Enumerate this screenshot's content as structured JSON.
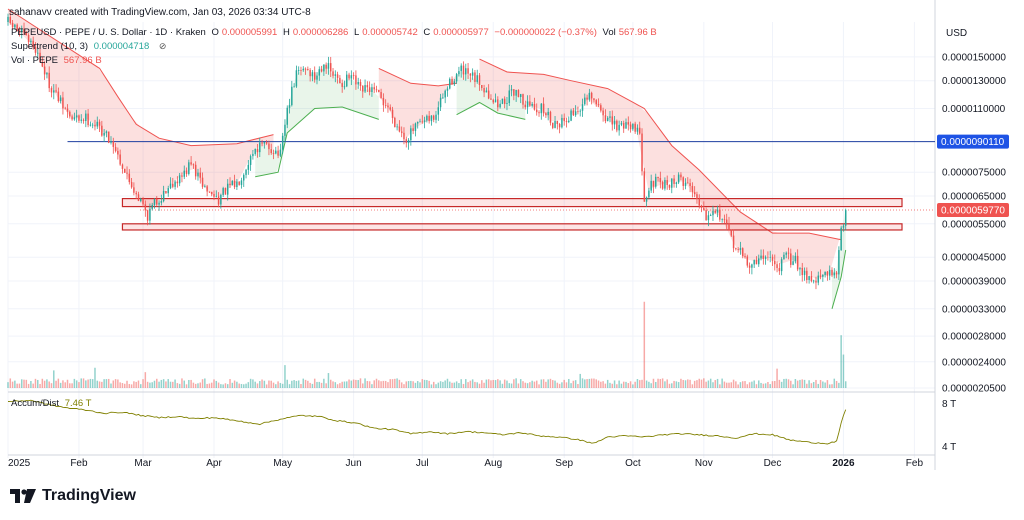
{
  "header": {
    "attribution": "sahanavv created with TradingView.com, Jan 03, 2026 03:34 UTC-8"
  },
  "legend": {
    "title": "PEPEUSD · PEPE / U. S. Dollar · 1D · Kraken",
    "o_key": "O",
    "o_val": "0.000005991",
    "h_key": "H",
    "h_val": "0.000006286",
    "l_key": "L",
    "l_val": "0.000005742",
    "c_key": "C",
    "c_val": "0.000005977",
    "change": "−0.000000022 (−0.37%)",
    "vol_key": "Vol",
    "vol_val": "567.96 B",
    "supertrend_label": "Supertrend (10, 3)",
    "supertrend_val": "0.000004718",
    "vol_label": "Vol · PEPE",
    "vol_label_val": "567.96 B",
    "accum_label": "Accum/Dist",
    "accum_val": "7.46 T"
  },
  "brand": {
    "name": "TradingView"
  },
  "colors": {
    "up": "#26a69a",
    "down": "#ef5350",
    "level_line": "#1e3fa0",
    "supertrend_up": "#4caf50",
    "supertrend_down": "#ef5350",
    "zone_border": "#c62828",
    "ad_line": "#808000"
  },
  "chart_data": {
    "type": "candlestick",
    "currency": "USD",
    "y_scale": "log",
    "ylim": [
      2.05e-06,
      1.85e-05
    ],
    "y_ticks": [
      "0.0000150000",
      "0.0000130000",
      "0.0000110000",
      "0.0000075000",
      "0.0000065000",
      "0.0000055000",
      "0.0000045000",
      "0.0000039000",
      "0.0000033000",
      "0.0000028000",
      "0.0000024000",
      "0.0000020500"
    ],
    "y_tick_values": [
      1.5e-05,
      1.3e-05,
      1.1e-05,
      7.5e-06,
      6.5e-06,
      5.5e-06,
      4.5e-06,
      3.9e-06,
      3.3e-06,
      2.8e-06,
      2.4e-06,
      2.05e-06
    ],
    "x_ticks": [
      "2025",
      "Feb",
      "Mar",
      "Apr",
      "May",
      "Jun",
      "Jul",
      "Aug",
      "Sep",
      "Oct",
      "Nov",
      "Dec",
      "2026",
      "Feb"
    ],
    "x_tick_days": [
      0,
      31,
      59,
      90,
      120,
      151,
      181,
      212,
      243,
      273,
      304,
      334,
      365,
      396
    ],
    "x_range_days": [
      0,
      405
    ],
    "price_labels": [
      {
        "label": "0.0000090110",
        "value": 9.011e-06,
        "kind": "level"
      },
      {
        "label": "0.0000059770",
        "value": 5.977e-06,
        "kind": "last"
      }
    ],
    "horizontal_level": {
      "value": 9.011e-06,
      "start_day": 26
    },
    "zones": [
      {
        "low": 6.1e-06,
        "high": 6.4e-06,
        "start_day": 50
      },
      {
        "low": 5.3e-06,
        "high": 5.5e-06,
        "start_day": 50
      }
    ],
    "close_path": [
      [
        0,
        1.85e-05
      ],
      [
        6,
        1.72e-05
      ],
      [
        12,
        1.58e-05
      ],
      [
        18,
        1.28e-05
      ],
      [
        24,
        1.11e-05
      ],
      [
        28,
        1.03e-05
      ],
      [
        34,
        1.04e-05
      ],
      [
        40,
        9.8e-06
      ],
      [
        46,
        8.9e-06
      ],
      [
        52,
        7.3e-06
      ],
      [
        58,
        6.3e-06
      ],
      [
        61,
        5.8e-06
      ],
      [
        64,
        6.2e-06
      ],
      [
        68,
        6.6e-06
      ],
      [
        72,
        7.1e-06
      ],
      [
        76,
        7.3e-06
      ],
      [
        80,
        7.9e-06
      ],
      [
        84,
        7.1e-06
      ],
      [
        88,
        6.6e-06
      ],
      [
        92,
        6.4e-06
      ],
      [
        96,
        6.8e-06
      ],
      [
        100,
        7e-06
      ],
      [
        104,
        7.8e-06
      ],
      [
        108,
        8.7e-06
      ],
      [
        112,
        8.8e-06
      ],
      [
        116,
        8.6e-06
      ],
      [
        119,
        8.3e-06
      ],
      [
        122,
        1.09e-05
      ],
      [
        126,
        1.35e-05
      ],
      [
        130,
        1.41e-05
      ],
      [
        134,
        1.32e-05
      ],
      [
        138,
        1.46e-05
      ],
      [
        142,
        1.34e-05
      ],
      [
        146,
        1.28e-05
      ],
      [
        150,
        1.33e-05
      ],
      [
        154,
        1.22e-05
      ],
      [
        158,
        1.24e-05
      ],
      [
        162,
        1.18e-05
      ],
      [
        166,
        1.11e-05
      ],
      [
        170,
        9.9e-06
      ],
      [
        174,
        9.2e-06
      ],
      [
        178,
        9.8e-06
      ],
      [
        182,
        1.01e-05
      ],
      [
        186,
        1.04e-05
      ],
      [
        190,
        1.18e-05
      ],
      [
        194,
        1.31e-05
      ],
      [
        198,
        1.38e-05
      ],
      [
        202,
        1.33e-05
      ],
      [
        206,
        1.29e-05
      ],
      [
        210,
        1.2e-05
      ],
      [
        214,
        1.12e-05
      ],
      [
        218,
        1.17e-05
      ],
      [
        222,
        1.23e-05
      ],
      [
        226,
        1.13e-05
      ],
      [
        230,
        1.11e-05
      ],
      [
        234,
        1.09e-05
      ],
      [
        238,
        1.01e-05
      ],
      [
        242,
        1.02e-05
      ],
      [
        246,
        1.06e-05
      ],
      [
        250,
        1.11e-05
      ],
      [
        254,
        1.17e-05
      ],
      [
        258,
        1.11e-05
      ],
      [
        262,
        1.03e-05
      ],
      [
        266,
        9.8e-06
      ],
      [
        270,
        1.01e-05
      ],
      [
        274,
        9.9e-06
      ],
      [
        276,
        9.2e-06
      ],
      [
        278,
        6.5e-06
      ],
      [
        282,
        7.1e-06
      ],
      [
        286,
        6.9e-06
      ],
      [
        290,
        7.1e-06
      ],
      [
        294,
        7.2e-06
      ],
      [
        298,
        6.9e-06
      ],
      [
        302,
        6.3e-06
      ],
      [
        305,
        5.8e-06
      ],
      [
        308,
        6.1e-06
      ],
      [
        312,
        5.7e-06
      ],
      [
        316,
        5e-06
      ],
      [
        320,
        4.6e-06
      ],
      [
        324,
        4.3e-06
      ],
      [
        328,
        4.4e-06
      ],
      [
        332,
        4.6e-06
      ],
      [
        336,
        4.2e-06
      ],
      [
        340,
        4.5e-06
      ],
      [
        344,
        4.4e-06
      ],
      [
        348,
        4.1e-06
      ],
      [
        352,
        3.9e-06
      ],
      [
        356,
        4e-06
      ],
      [
        360,
        4.1e-06
      ],
      [
        362,
        4.2e-06
      ],
      [
        364,
        5.2e-06
      ],
      [
        366,
        6e-06
      ]
    ],
    "supertrend": [
      {
        "trend": "down",
        "points": [
          [
            0,
            2e-05
          ],
          [
            40,
            1.4e-05
          ],
          [
            48,
            1.18e-05
          ],
          [
            56,
            1e-05
          ],
          [
            66,
            9.2e-06
          ],
          [
            80,
            8.8e-06
          ],
          [
            100,
            8.9e-06
          ],
          [
            116,
            9.4e-06
          ]
        ]
      },
      {
        "trend": "up",
        "points": [
          [
            108,
            7.3e-06
          ],
          [
            118,
            7.5e-06
          ],
          [
            122,
            9.5e-06
          ],
          [
            134,
            1.1e-05
          ],
          [
            146,
            1.11e-05
          ],
          [
            162,
            1.03e-05
          ]
        ]
      },
      {
        "trend": "down",
        "points": [
          [
            162,
            1.4e-05
          ],
          [
            176,
            1.28e-05
          ],
          [
            188,
            1.26e-05
          ],
          [
            196,
            1.28e-05
          ]
        ]
      },
      {
        "trend": "up",
        "points": [
          [
            196,
            1.06e-05
          ],
          [
            206,
            1.14e-05
          ],
          [
            214,
            1.07e-05
          ],
          [
            226,
            1.03e-05
          ]
        ]
      },
      {
        "trend": "down",
        "points": [
          [
            206,
            1.48e-05
          ],
          [
            218,
            1.37e-05
          ],
          [
            234,
            1.35e-05
          ],
          [
            246,
            1.3e-05
          ],
          [
            262,
            1.24e-05
          ],
          [
            278,
            1.1e-05
          ],
          [
            290,
            8.8e-06
          ],
          [
            302,
            7.6e-06
          ],
          [
            320,
            5.9e-06
          ],
          [
            334,
            5.2e-06
          ],
          [
            350,
            5.2e-06
          ],
          [
            364,
            5e-06
          ]
        ]
      },
      {
        "trend": "up",
        "points": [
          [
            360,
            3.3e-06
          ],
          [
            364,
            4e-06
          ],
          [
            366,
            4.7e-06
          ]
        ]
      }
    ],
    "volume_scale_max": 1000,
    "volume_spikes": [
      {
        "day": 20,
        "value": 200,
        "dir": "up"
      },
      {
        "day": 38,
        "value": 230,
        "dir": "up"
      },
      {
        "day": 60,
        "value": 180,
        "dir": "down"
      },
      {
        "day": 121,
        "value": 260,
        "dir": "up"
      },
      {
        "day": 140,
        "value": 170,
        "dir": "up"
      },
      {
        "day": 250,
        "value": 160,
        "dir": "up"
      },
      {
        "day": 278,
        "value": 980,
        "dir": "down"
      },
      {
        "day": 336,
        "value": 220,
        "dir": "down"
      },
      {
        "day": 364,
        "value": 600,
        "dir": "up"
      },
      {
        "day": 365,
        "value": 380,
        "dir": "up"
      }
    ],
    "accum_dist": {
      "yticks": [
        "8 T",
        "4 T"
      ],
      "ytick_values": [
        8,
        4
      ],
      "ylim": [
        3.5,
        8.8
      ],
      "points": [
        [
          0,
          8.2
        ],
        [
          10,
          8.3
        ],
        [
          18,
          7.9
        ],
        [
          26,
          7.6
        ],
        [
          34,
          7.4
        ],
        [
          42,
          7.1
        ],
        [
          50,
          7.2
        ],
        [
          58,
          6.9
        ],
        [
          66,
          6.7
        ],
        [
          74,
          6.8
        ],
        [
          82,
          6.6
        ],
        [
          90,
          6.7
        ],
        [
          100,
          6.4
        ],
        [
          110,
          6.1
        ],
        [
          120,
          6.6
        ],
        [
          128,
          6.9
        ],
        [
          136,
          6.8
        ],
        [
          144,
          6.4
        ],
        [
          152,
          6.2
        ],
        [
          160,
          5.7
        ],
        [
          168,
          5.6
        ],
        [
          176,
          5.2
        ],
        [
          184,
          5.4
        ],
        [
          192,
          5.2
        ],
        [
          200,
          5.4
        ],
        [
          208,
          5.3
        ],
        [
          216,
          5.1
        ],
        [
          224,
          5.3
        ],
        [
          232,
          5.0
        ],
        [
          240,
          4.9
        ],
        [
          248,
          4.7
        ],
        [
          256,
          4.3
        ],
        [
          262,
          4.9
        ],
        [
          270,
          5.0
        ],
        [
          278,
          4.9
        ],
        [
          286,
          5.1
        ],
        [
          294,
          5.2
        ],
        [
          302,
          5.1
        ],
        [
          310,
          5.0
        ],
        [
          318,
          4.8
        ],
        [
          326,
          5.2
        ],
        [
          334,
          5.1
        ],
        [
          342,
          4.6
        ],
        [
          350,
          4.4
        ],
        [
          358,
          4.3
        ],
        [
          362,
          4.5
        ],
        [
          364,
          6.2
        ],
        [
          366,
          7.46
        ]
      ]
    }
  }
}
